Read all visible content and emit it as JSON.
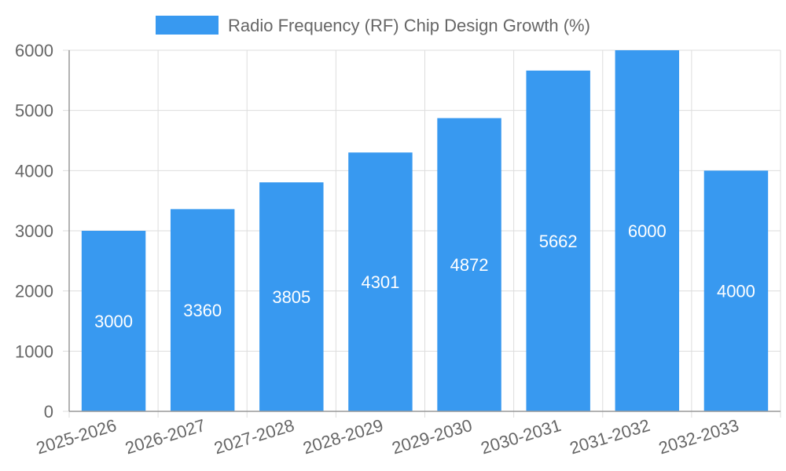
{
  "chart_data": {
    "type": "bar",
    "categories": [
      "2025-2026",
      "2026-2027",
      "2027-2028",
      "2028-2029",
      "2029-2030",
      "2030-2031",
      "2031-2032",
      "2032-2033"
    ],
    "series": [
      {
        "name": "Radio Frequency (RF) Chip Design Growth (%)",
        "values": [
          3000,
          3360,
          3805,
          4301,
          4872,
          5662,
          6000,
          4000
        ],
        "color": "#3899f0"
      }
    ],
    "ylim": [
      0,
      6000
    ],
    "yticks": [
      0,
      1000,
      2000,
      3000,
      4000,
      5000,
      6000
    ],
    "grid": true,
    "legend_position": "top",
    "data_labels": true
  }
}
